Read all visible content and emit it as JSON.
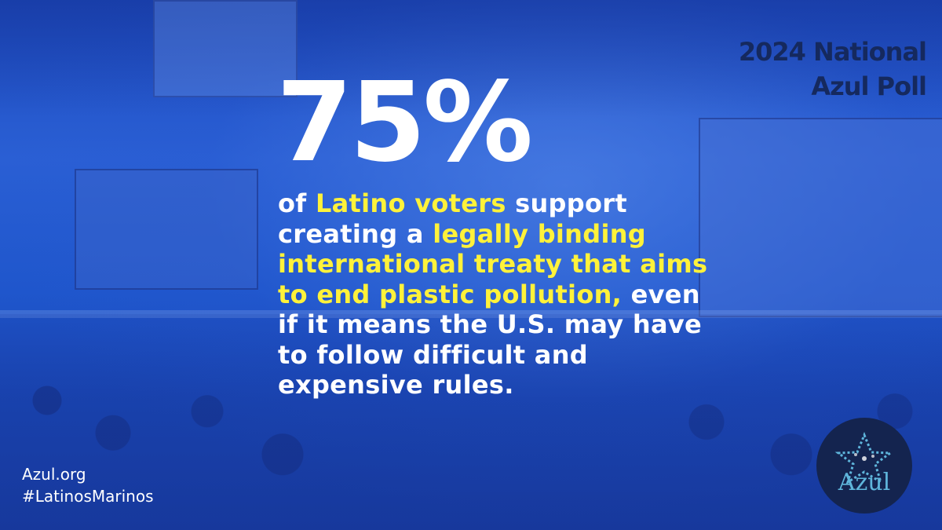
{
  "poll_title": {
    "line1": "2024 National",
    "line2": "Azul Poll"
  },
  "stat": {
    "value": "75%"
  },
  "statement": {
    "segments": [
      {
        "text": "of ",
        "highlight": false
      },
      {
        "text": "Latino voters",
        "highlight": true
      },
      {
        "text": " support creating a ",
        "highlight": false
      },
      {
        "text": "legally binding international treaty that aims to end plastic pollution,",
        "highlight": true
      },
      {
        "text": " even if it means the U.S. may have to follow difficult and expensive rules.",
        "highlight": false
      }
    ]
  },
  "footer": {
    "website": "Azul.org",
    "hashtag": "#LatinosMarinos"
  },
  "logo": {
    "text": "Azul"
  },
  "colors": {
    "background_blue": "#1d4fc4",
    "highlight_yellow": "#fff23a",
    "title_navy": "#15295e",
    "logo_circle": "#14244f",
    "logo_text": "#5fb6dc"
  }
}
